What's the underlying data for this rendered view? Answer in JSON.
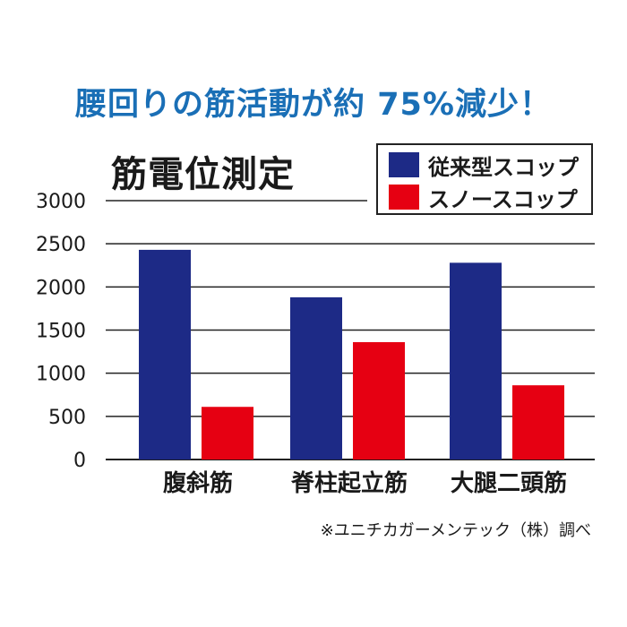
{
  "headline": "腰回りの筋活動が約 75%減少！",
  "footnote": "※ユニチカガーメンテック（株）調べ",
  "colors": {
    "headline": "#1a6fb6",
    "series1": "#1d2a86",
    "series2": "#e60012"
  },
  "chart_data": {
    "type": "bar",
    "title": "筋電位測定",
    "xlabel": "",
    "ylabel": "",
    "categories": [
      "腹斜筋",
      "脊柱起立筋",
      "大腿二頭筋"
    ],
    "series": [
      {
        "name": "従来型スコップ",
        "color": "#1d2a86",
        "values": [
          2430,
          1880,
          2280
        ]
      },
      {
        "name": "スノースコップ",
        "color": "#e60012",
        "values": [
          610,
          1360,
          860
        ]
      }
    ],
    "ylim": [
      0,
      3000
    ],
    "yticks": [
      0,
      500,
      1000,
      1500,
      2000,
      2500,
      3000
    ],
    "grid": true,
    "legend_position": "top-right"
  }
}
